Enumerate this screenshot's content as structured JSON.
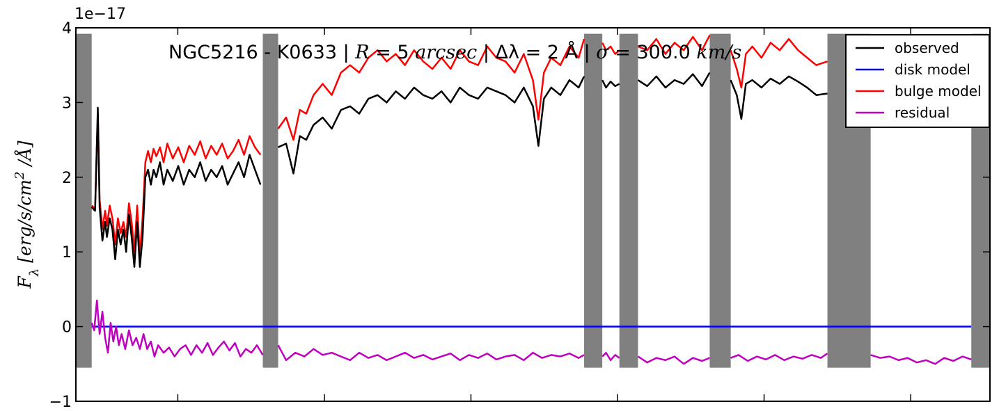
{
  "chart_data": {
    "type": "line",
    "title": "NGC5216 - K0633 | R = 5 arcsec | Δλ = 2 Å | σ = 300.0 km/s",
    "ylabel": "F_λ [erg/s/cm² /Å]",
    "xlabel": "",
    "y_offset_label": "1e−17",
    "ylim": [
      -1,
      4
    ],
    "xlim": [
      0,
      1
    ],
    "yticks": [
      -1,
      0,
      1,
      2,
      3,
      4
    ],
    "ytick_labels": [
      "−1",
      "0",
      "1",
      "2",
      "3",
      "4"
    ],
    "xticks": [
      0.1115,
      0.2719,
      0.4322,
      0.5926,
      0.7529,
      0.9133
    ],
    "xtick_labels": [
      "",
      "",
      "",
      "",
      "",
      ""
    ],
    "grid": false,
    "legend_location": "upper right",
    "masked_regions": [
      [
        0.0,
        0.0173
      ],
      [
        0.2045,
        0.2213
      ],
      [
        0.556,
        0.5759
      ],
      [
        0.5946,
        0.615
      ],
      [
        0.6934,
        0.7164
      ],
      [
        0.8222,
        0.8695
      ],
      [
        0.9796,
        1.0
      ]
    ],
    "mask_y_range": [
      -0.55,
      3.92
    ],
    "series": [
      {
        "name": "observed",
        "color": "#000000",
        "x": [
          0.0173,
          0.021,
          0.024,
          0.026,
          0.029,
          0.032,
          0.034,
          0.037,
          0.04,
          0.043,
          0.046,
          0.049,
          0.052,
          0.055,
          0.058,
          0.061,
          0.064,
          0.067,
          0.07,
          0.073,
          0.076,
          0.079,
          0.082,
          0.085,
          0.088,
          0.092,
          0.096,
          0.1,
          0.106,
          0.112,
          0.118,
          0.124,
          0.13,
          0.136,
          0.142,
          0.148,
          0.154,
          0.16,
          0.166,
          0.172,
          0.178,
          0.184,
          0.19,
          0.196,
          0.202
        ],
        "values": [
          1.6,
          1.55,
          2.93,
          1.6,
          1.15,
          1.4,
          1.2,
          1.45,
          1.3,
          0.9,
          1.3,
          1.1,
          1.3,
          1.0,
          1.5,
          1.2,
          0.8,
          1.4,
          0.8,
          1.2,
          2.0,
          2.1,
          1.9,
          2.1,
          2.0,
          2.2,
          1.9,
          2.1,
          1.95,
          2.15,
          1.9,
          2.1,
          2.0,
          2.2,
          1.95,
          2.1,
          2.0,
          2.15,
          1.9,
          2.05,
          2.2,
          2.0,
          2.3,
          2.1,
          1.9
        ]
      },
      {
        "name": "observed",
        "color": "#000000",
        "x": [
          0.2213,
          0.23,
          0.238,
          0.245,
          0.252,
          0.26,
          0.27,
          0.28,
          0.29,
          0.3,
          0.31,
          0.32,
          0.33,
          0.34,
          0.35,
          0.36,
          0.37,
          0.38,
          0.39,
          0.4,
          0.41,
          0.42,
          0.43,
          0.44,
          0.45,
          0.46,
          0.47,
          0.48,
          0.49,
          0.5,
          0.506,
          0.512,
          0.52,
          0.53,
          0.54,
          0.55,
          0.556
        ],
        "values": [
          2.4,
          2.45,
          2.05,
          2.55,
          2.5,
          2.7,
          2.8,
          2.65,
          2.9,
          2.95,
          2.85,
          3.05,
          3.1,
          3.0,
          3.15,
          3.05,
          3.2,
          3.1,
          3.05,
          3.15,
          3.0,
          3.2,
          3.1,
          3.05,
          3.2,
          3.15,
          3.1,
          3.0,
          3.2,
          2.95,
          2.42,
          3.05,
          3.2,
          3.1,
          3.3,
          3.2,
          3.35
        ]
      },
      {
        "name": "observed",
        "color": "#000000",
        "x": [
          0.5759,
          0.58,
          0.585,
          0.59,
          0.5946
        ],
        "values": [
          3.3,
          3.2,
          3.28,
          3.22,
          3.25
        ]
      },
      {
        "name": "observed",
        "color": "#000000",
        "x": [
          0.615,
          0.625,
          0.635,
          0.645,
          0.655,
          0.665,
          0.675,
          0.685,
          0.6934
        ],
        "values": [
          3.3,
          3.22,
          3.35,
          3.2,
          3.3,
          3.25,
          3.38,
          3.22,
          3.4
        ]
      },
      {
        "name": "observed",
        "color": "#000000",
        "x": [
          0.7164,
          0.723,
          0.728,
          0.733,
          0.74,
          0.75,
          0.76,
          0.77,
          0.78,
          0.79,
          0.8,
          0.81,
          0.8222
        ],
        "values": [
          3.3,
          3.1,
          2.78,
          3.25,
          3.3,
          3.2,
          3.32,
          3.25,
          3.35,
          3.28,
          3.2,
          3.1,
          3.12
        ]
      },
      {
        "name": "bulge model",
        "color": "#ff0000",
        "x": [
          0.0173,
          0.021,
          0.024,
          0.026,
          0.029,
          0.032,
          0.034,
          0.037,
          0.04,
          0.043,
          0.046,
          0.049,
          0.052,
          0.055,
          0.058,
          0.061,
          0.064,
          0.067,
          0.07,
          0.073,
          0.076,
          0.079,
          0.082,
          0.085,
          0.088,
          0.092,
          0.096,
          0.1,
          0.106,
          0.112,
          0.118,
          0.124,
          0.13,
          0.136,
          0.142,
          0.148,
          0.154,
          0.16,
          0.166,
          0.172,
          0.178,
          0.184,
          0.19,
          0.196,
          0.202
        ],
        "values": [
          1.62,
          1.58,
          2.85,
          1.7,
          1.3,
          1.55,
          1.35,
          1.62,
          1.45,
          1.1,
          1.45,
          1.25,
          1.4,
          1.2,
          1.65,
          1.4,
          1.0,
          1.62,
          0.95,
          1.45,
          2.2,
          2.35,
          2.2,
          2.38,
          2.28,
          2.4,
          2.2,
          2.45,
          2.25,
          2.4,
          2.2,
          2.42,
          2.3,
          2.48,
          2.25,
          2.42,
          2.3,
          2.45,
          2.25,
          2.35,
          2.5,
          2.3,
          2.55,
          2.4,
          2.3
        ]
      },
      {
        "name": "bulge model",
        "color": "#ff0000",
        "x": [
          0.2213,
          0.23,
          0.238,
          0.245,
          0.252,
          0.26,
          0.27,
          0.28,
          0.29,
          0.3,
          0.31,
          0.32,
          0.33,
          0.34,
          0.35,
          0.36,
          0.37,
          0.38,
          0.39,
          0.4,
          0.41,
          0.42,
          0.43,
          0.44,
          0.45,
          0.46,
          0.47,
          0.48,
          0.49,
          0.5,
          0.506,
          0.512,
          0.52,
          0.53,
          0.54,
          0.55,
          0.556
        ],
        "values": [
          2.65,
          2.8,
          2.5,
          2.9,
          2.85,
          3.1,
          3.25,
          3.1,
          3.4,
          3.5,
          3.4,
          3.6,
          3.7,
          3.55,
          3.65,
          3.5,
          3.7,
          3.55,
          3.45,
          3.6,
          3.45,
          3.7,
          3.55,
          3.5,
          3.75,
          3.6,
          3.55,
          3.4,
          3.65,
          3.3,
          2.77,
          3.4,
          3.6,
          3.5,
          3.75,
          3.6,
          3.85
        ]
      },
      {
        "name": "bulge model",
        "color": "#ff0000",
        "x": [
          0.5759,
          0.58,
          0.585,
          0.59,
          0.5946
        ],
        "values": [
          3.8,
          3.7,
          3.75,
          3.65,
          3.7
        ]
      },
      {
        "name": "bulge model",
        "color": "#ff0000",
        "x": [
          0.615,
          0.625,
          0.635,
          0.645,
          0.655,
          0.665,
          0.675,
          0.685,
          0.6934
        ],
        "values": [
          3.75,
          3.7,
          3.85,
          3.65,
          3.8,
          3.7,
          3.88,
          3.7,
          3.9
        ]
      },
      {
        "name": "bulge model",
        "color": "#ff0000",
        "x": [
          0.7164,
          0.723,
          0.728,
          0.733,
          0.74,
          0.75,
          0.76,
          0.77,
          0.78,
          0.79,
          0.8,
          0.81,
          0.8222
        ],
        "values": [
          3.7,
          3.45,
          3.2,
          3.65,
          3.75,
          3.6,
          3.8,
          3.7,
          3.85,
          3.7,
          3.6,
          3.5,
          3.55
        ]
      },
      {
        "name": "disk model",
        "color": "#0000ff",
        "x": [
          0.0173,
          0.9796
        ],
        "values": [
          0.0,
          0.0
        ]
      },
      {
        "name": "residual",
        "color": "#bf00bf",
        "x": [
          0.0173,
          0.02,
          0.023,
          0.026,
          0.029,
          0.032,
          0.035,
          0.038,
          0.041,
          0.044,
          0.047,
          0.05,
          0.054,
          0.058,
          0.062,
          0.066,
          0.07,
          0.074,
          0.078,
          0.082,
          0.086,
          0.09,
          0.096,
          0.102,
          0.108,
          0.114,
          0.12,
          0.126,
          0.132,
          0.138,
          0.144,
          0.15,
          0.156,
          0.162,
          0.168,
          0.174,
          0.18,
          0.186,
          0.192,
          0.198,
          0.2045
        ],
        "values": [
          0.05,
          -0.05,
          0.35,
          -0.1,
          0.2,
          -0.15,
          -0.35,
          0.05,
          -0.2,
          0.0,
          -0.25,
          -0.1,
          -0.3,
          -0.05,
          -0.25,
          -0.15,
          -0.3,
          -0.1,
          -0.3,
          -0.2,
          -0.4,
          -0.25,
          -0.35,
          -0.28,
          -0.4,
          -0.3,
          -0.25,
          -0.38,
          -0.25,
          -0.35,
          -0.22,
          -0.38,
          -0.28,
          -0.2,
          -0.32,
          -0.22,
          -0.4,
          -0.3,
          -0.35,
          -0.25,
          -0.38
        ]
      },
      {
        "name": "residual",
        "color": "#bf00bf",
        "x": [
          0.2213,
          0.23,
          0.24,
          0.25,
          0.26,
          0.27,
          0.28,
          0.29,
          0.3,
          0.31,
          0.32,
          0.33,
          0.34,
          0.35,
          0.36,
          0.37,
          0.38,
          0.39,
          0.4,
          0.41,
          0.42,
          0.43,
          0.44,
          0.45,
          0.46,
          0.47,
          0.48,
          0.49,
          0.5,
          0.51,
          0.52,
          0.53,
          0.54,
          0.55,
          0.556
        ],
        "values": [
          -0.25,
          -0.45,
          -0.35,
          -0.4,
          -0.3,
          -0.38,
          -0.35,
          -0.4,
          -0.45,
          -0.35,
          -0.42,
          -0.38,
          -0.45,
          -0.4,
          -0.35,
          -0.42,
          -0.38,
          -0.44,
          -0.4,
          -0.36,
          -0.45,
          -0.38,
          -0.42,
          -0.36,
          -0.44,
          -0.4,
          -0.38,
          -0.45,
          -0.35,
          -0.42,
          -0.38,
          -0.4,
          -0.36,
          -0.42,
          -0.38
        ]
      },
      {
        "name": "residual",
        "color": "#bf00bf",
        "x": [
          0.5759,
          0.58,
          0.585,
          0.59,
          0.5946
        ],
        "values": [
          -0.4,
          -0.35,
          -0.45,
          -0.38,
          -0.42
        ]
      },
      {
        "name": "residual",
        "color": "#bf00bf",
        "x": [
          0.615,
          0.625,
          0.635,
          0.645,
          0.655,
          0.665,
          0.675,
          0.685,
          0.6934
        ],
        "values": [
          -0.4,
          -0.48,
          -0.42,
          -0.45,
          -0.4,
          -0.5,
          -0.42,
          -0.46,
          -0.42
        ]
      },
      {
        "name": "residual",
        "color": "#bf00bf",
        "x": [
          0.7164,
          0.725,
          0.735,
          0.745,
          0.755,
          0.765,
          0.775,
          0.785,
          0.795,
          0.805,
          0.815,
          0.8222
        ],
        "values": [
          -0.42,
          -0.38,
          -0.46,
          -0.4,
          -0.44,
          -0.38,
          -0.45,
          -0.4,
          -0.43,
          -0.38,
          -0.42,
          -0.36
        ]
      },
      {
        "name": "residual",
        "color": "#bf00bf",
        "x": [
          0.8695,
          0.88,
          0.89,
          0.9,
          0.91,
          0.92,
          0.93,
          0.94,
          0.95,
          0.96,
          0.97,
          0.9796
        ],
        "values": [
          -0.38,
          -0.42,
          -0.4,
          -0.45,
          -0.42,
          -0.48,
          -0.45,
          -0.5,
          -0.42,
          -0.46,
          -0.4,
          -0.44
        ]
      }
    ],
    "legend": [
      {
        "label": "observed",
        "color": "#000000"
      },
      {
        "label": "disk model",
        "color": "#0000ff"
      },
      {
        "label": "bulge model",
        "color": "#ff0000"
      },
      {
        "label": "residual",
        "color": "#bf00bf"
      }
    ],
    "mask_color": "#808080"
  }
}
